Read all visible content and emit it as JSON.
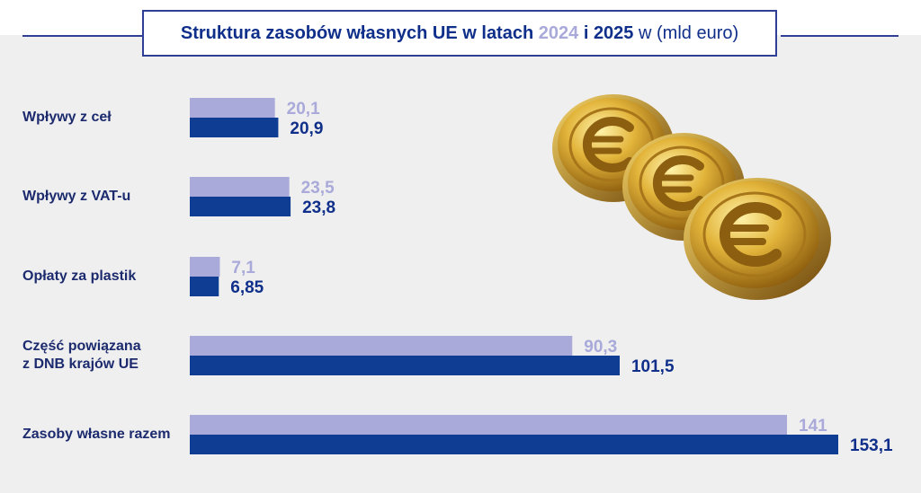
{
  "title": {
    "main": "Struktura zasobów własnych UE w latach",
    "year1": "2024",
    "conj": "i",
    "year2": "2025",
    "unit": "w (mld euro)"
  },
  "colors": {
    "series_2024": "#a9a9da",
    "series_2025": "#0f3d94",
    "title_border": "#2f3f95",
    "background_panel": "#efefef"
  },
  "decorations": [
    "euro-coin-icon",
    "euro-coin-icon",
    "euro-coin-icon"
  ],
  "chart_data": {
    "type": "bar",
    "orientation": "horizontal",
    "categories": [
      "Wpływy z ceł",
      "Wpływy z VAT-u",
      "Opłaty za plastik",
      "Część powiązana\nz DNB krajów UE",
      "Zasoby własne razem"
    ],
    "series": [
      {
        "name": "2024",
        "values": [
          20.1,
          23.5,
          7.1,
          90.3,
          141
        ],
        "labels": [
          "20,1",
          "23,5",
          "7,1",
          "90,3",
          "141"
        ]
      },
      {
        "name": "2025",
        "values": [
          20.9,
          23.8,
          6.85,
          101.5,
          153.1
        ],
        "labels": [
          "20,9",
          "23,8",
          "6,85",
          "101,5",
          "153,1"
        ]
      }
    ],
    "xlim": [
      0,
      153.1
    ],
    "grid": false,
    "legend": "none"
  }
}
